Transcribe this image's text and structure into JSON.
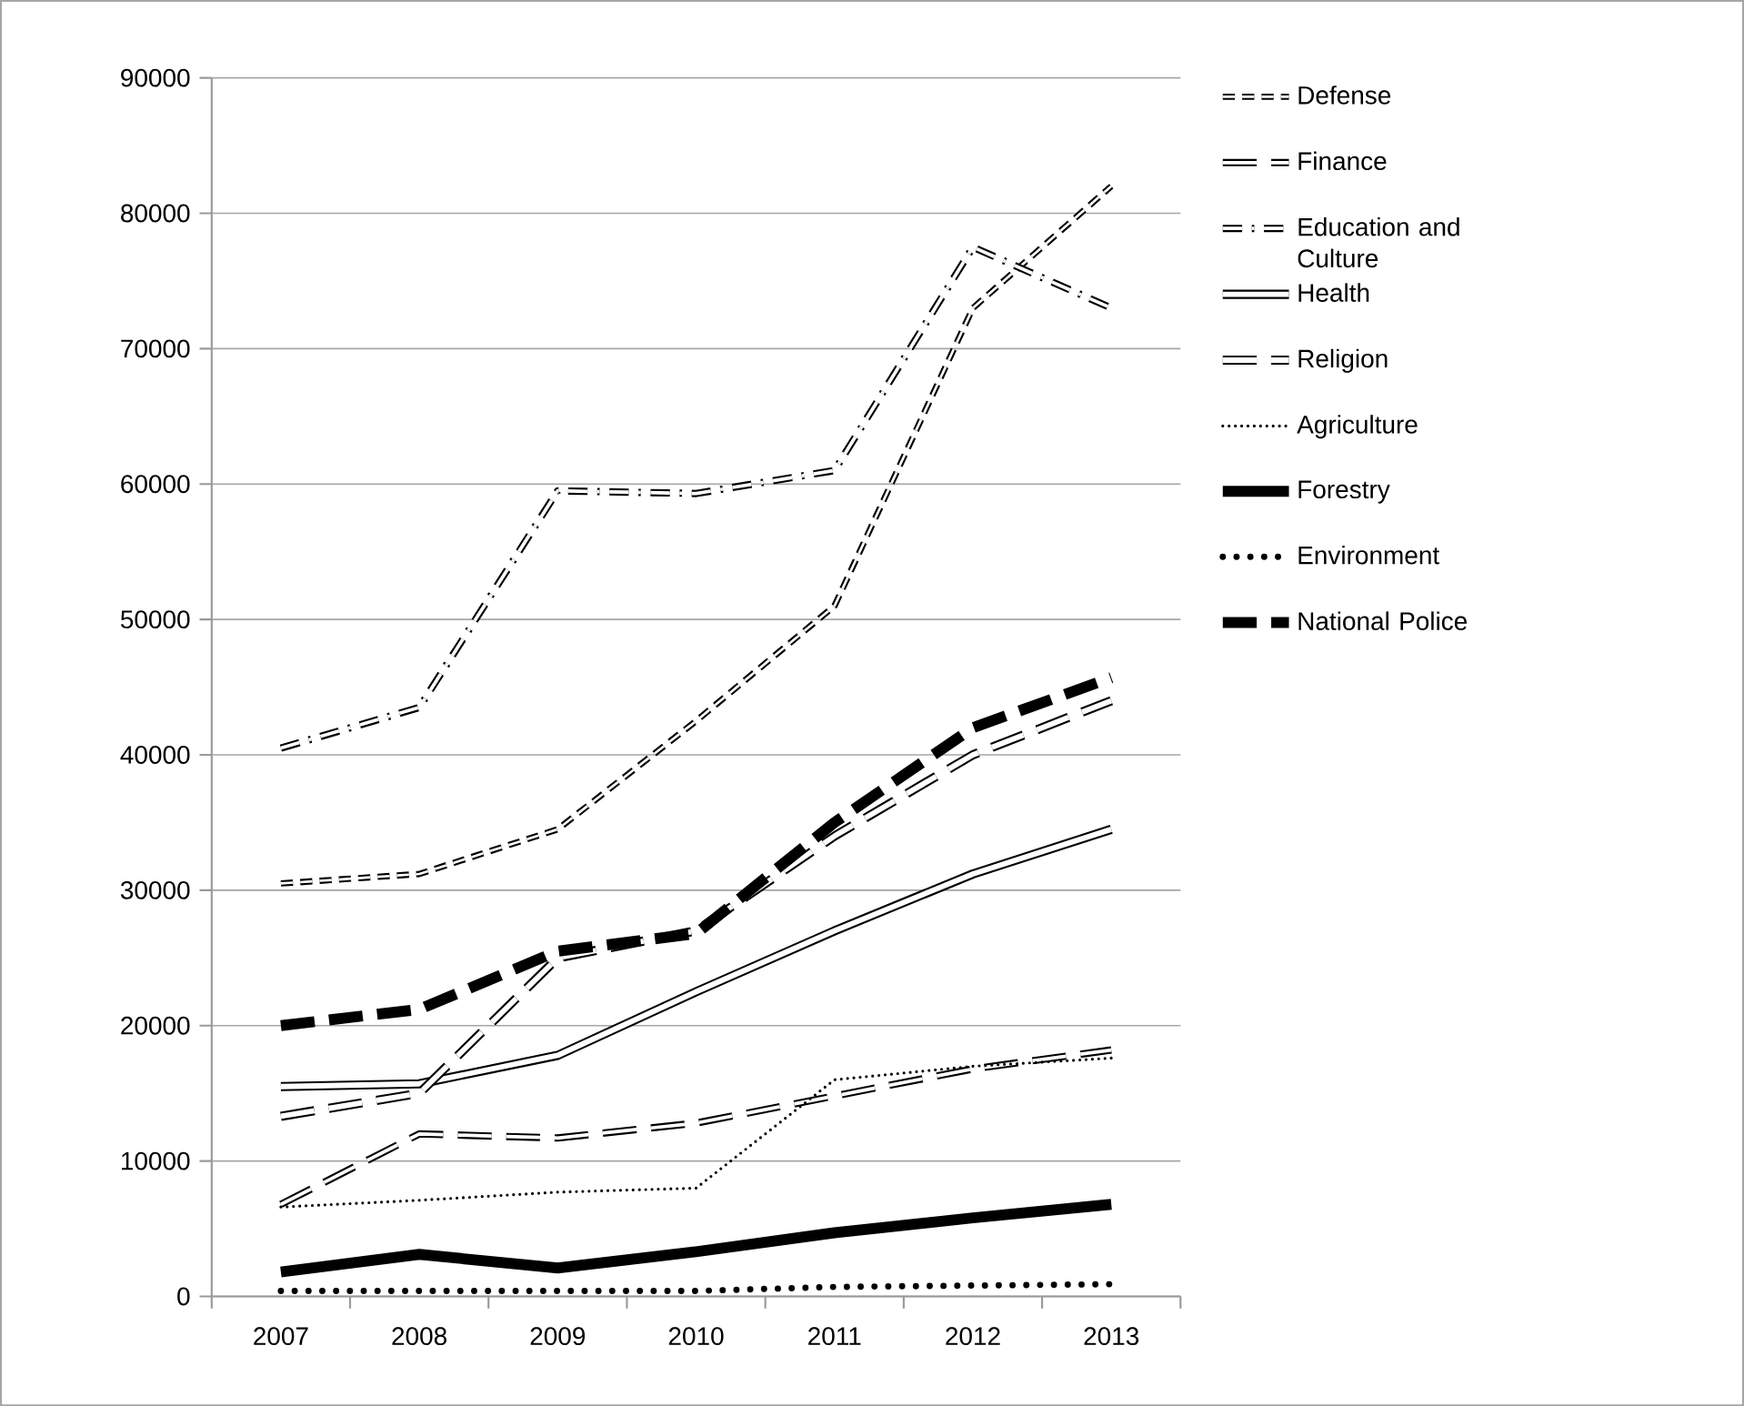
{
  "chart_data": {
    "type": "line",
    "categories": [
      "2007",
      "2008",
      "2009",
      "2010",
      "2011",
      "2012",
      "2013"
    ],
    "ylim": [
      0,
      90000
    ],
    "yticks": [
      0,
      10000,
      20000,
      30000,
      40000,
      50000,
      60000,
      70000,
      80000,
      90000
    ],
    "grid": "y",
    "legend": "right",
    "marker": "none",
    "series": [
      {
        "name": "Defense",
        "color": "#000000",
        "line_style": "dashed",
        "values": [
          30500,
          31200,
          34500,
          42500,
          51000,
          73000,
          82000
        ]
      },
      {
        "name": "Finance",
        "color": "#000000",
        "line_style": "dashed",
        "values": [
          6800,
          12000,
          11700,
          12800,
          14800,
          16800,
          18200
        ]
      },
      {
        "name": "Education and Culture",
        "color": "#000000",
        "line_style": "dashed",
        "values": [
          40500,
          43500,
          59500,
          59300,
          61000,
          77500,
          73000
        ]
      },
      {
        "name": "Health",
        "color": "#000000",
        "line_style": "solid",
        "values": [
          15500,
          15700,
          17800,
          22500,
          27000,
          31200,
          34500
        ]
      },
      {
        "name": "Religion",
        "color": "#000000",
        "line_style": "dashed",
        "values": [
          13300,
          15000,
          25000,
          27000,
          34000,
          40000,
          44000
        ]
      },
      {
        "name": "Agriculture",
        "color": "#000000",
        "line_style": "dotted",
        "values": [
          6600,
          7100,
          7700,
          8000,
          16000,
          17000,
          17600
        ]
      },
      {
        "name": "Forestry",
        "color": "#000000",
        "line_style": "solid",
        "values": [
          1800,
          3100,
          2100,
          3300,
          4700,
          5800,
          6800
        ]
      },
      {
        "name": "Environment",
        "color": "#000000",
        "line_style": "dotted",
        "values": [
          400,
          400,
          400,
          400,
          700,
          800,
          900
        ]
      },
      {
        "name": "National Police",
        "color": "#000000",
        "line_style": "dashed",
        "values": [
          20000,
          21200,
          25500,
          26800,
          35000,
          42000,
          45700
        ]
      }
    ]
  }
}
